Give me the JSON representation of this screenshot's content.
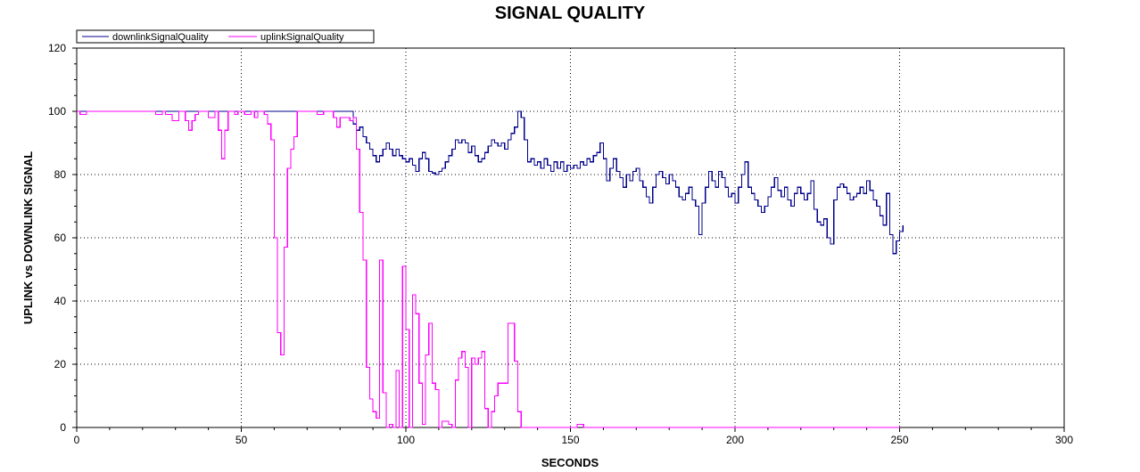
{
  "chart_data": {
    "type": "line",
    "title": "SIGNAL QUALITY",
    "xlabel": "SECONDS",
    "ylabel": "UPLINK vs DOWNLINK SIGNAL",
    "xlim": [
      0,
      300
    ],
    "ylim": [
      0,
      120
    ],
    "xticks": [
      0,
      50,
      100,
      150,
      200,
      250,
      300
    ],
    "yticks": [
      0,
      20,
      40,
      60,
      80,
      100,
      120
    ],
    "grid": true,
    "legend_position": "top-left",
    "step": true,
    "series": [
      {
        "name": "downlinkSignalQuality",
        "color": "#00008b",
        "points": [
          [
            0,
            100
          ],
          [
            83,
            100
          ],
          [
            84,
            96
          ],
          [
            85,
            94
          ],
          [
            86,
            95
          ],
          [
            87,
            92
          ],
          [
            88,
            90
          ],
          [
            89,
            88
          ],
          [
            90,
            86
          ],
          [
            91,
            84
          ],
          [
            92,
            86
          ],
          [
            93,
            88
          ],
          [
            94,
            90
          ],
          [
            95,
            88
          ],
          [
            96,
            86
          ],
          [
            97,
            88
          ],
          [
            98,
            86
          ],
          [
            99,
            85
          ],
          [
            100,
            84
          ],
          [
            101,
            85
          ],
          [
            102,
            83
          ],
          [
            103,
            81
          ],
          [
            104,
            85
          ],
          [
            105,
            87
          ],
          [
            106,
            85
          ],
          [
            107,
            81
          ],
          [
            108,
            80.5
          ],
          [
            109,
            80
          ],
          [
            110,
            81
          ],
          [
            111,
            82
          ],
          [
            112,
            84
          ],
          [
            113,
            86
          ],
          [
            114,
            88
          ],
          [
            115,
            91
          ],
          [
            116,
            90
          ],
          [
            117,
            91
          ],
          [
            118,
            90
          ],
          [
            119,
            87
          ],
          [
            120,
            89
          ],
          [
            121,
            86
          ],
          [
            122,
            84
          ],
          [
            123,
            85
          ],
          [
            124,
            87
          ],
          [
            125,
            89
          ],
          [
            126,
            91
          ],
          [
            127,
            90
          ],
          [
            128,
            89
          ],
          [
            129,
            90
          ],
          [
            130,
            88
          ],
          [
            131,
            91
          ],
          [
            132,
            93
          ],
          [
            133,
            95
          ],
          [
            134,
            100
          ],
          [
            135,
            98
          ],
          [
            136,
            91
          ],
          [
            137,
            84
          ],
          [
            138,
            85
          ],
          [
            139,
            83
          ],
          [
            140,
            84
          ],
          [
            141,
            82
          ],
          [
            142,
            85
          ],
          [
            143,
            83
          ],
          [
            144,
            81
          ],
          [
            145,
            84
          ],
          [
            146,
            82
          ],
          [
            147,
            84
          ],
          [
            148,
            81
          ],
          [
            149,
            83
          ],
          [
            150,
            82
          ],
          [
            151,
            83
          ],
          [
            152,
            82
          ],
          [
            153,
            84
          ],
          [
            154,
            83
          ],
          [
            155,
            85
          ],
          [
            156,
            84
          ],
          [
            157,
            86
          ],
          [
            158,
            87
          ],
          [
            159,
            90
          ],
          [
            160,
            85
          ],
          [
            161,
            78
          ],
          [
            162,
            82
          ],
          [
            163,
            85
          ],
          [
            164,
            81
          ],
          [
            165,
            79
          ],
          [
            166,
            76
          ],
          [
            167,
            80
          ],
          [
            168,
            78
          ],
          [
            169,
            81
          ],
          [
            170,
            82
          ],
          [
            171,
            78
          ],
          [
            172,
            76
          ],
          [
            173,
            73
          ],
          [
            174,
            71
          ],
          [
            175,
            76
          ],
          [
            176,
            80
          ],
          [
            177,
            81
          ],
          [
            178,
            79
          ],
          [
            179,
            77
          ],
          [
            180,
            80
          ],
          [
            181,
            78
          ],
          [
            182,
            76
          ],
          [
            183,
            73
          ],
          [
            184,
            72
          ],
          [
            185,
            74
          ],
          [
            186,
            76
          ],
          [
            187,
            72
          ],
          [
            188,
            70
          ],
          [
            189,
            61
          ],
          [
            190,
            71
          ],
          [
            191,
            76
          ],
          [
            192,
            81
          ],
          [
            193,
            78
          ],
          [
            194,
            76
          ],
          [
            195,
            81
          ],
          [
            196,
            79
          ],
          [
            197,
            76
          ],
          [
            198,
            73
          ],
          [
            199,
            74
          ],
          [
            200,
            71
          ],
          [
            201,
            76
          ],
          [
            202,
            80
          ],
          [
            203,
            84
          ],
          [
            204,
            76
          ],
          [
            205,
            74
          ],
          [
            206,
            72
          ],
          [
            207,
            70
          ],
          [
            208,
            68
          ],
          [
            209,
            70
          ],
          [
            210,
            73
          ],
          [
            211,
            76
          ],
          [
            212,
            79
          ],
          [
            213,
            75
          ],
          [
            214,
            73
          ],
          [
            215,
            76
          ],
          [
            216,
            72
          ],
          [
            217,
            70
          ],
          [
            218,
            74
          ],
          [
            219,
            76
          ],
          [
            220,
            74
          ],
          [
            221,
            72
          ],
          [
            222,
            74
          ],
          [
            223,
            78
          ],
          [
            224,
            69
          ],
          [
            225,
            65
          ],
          [
            226,
            64
          ],
          [
            227,
            66
          ],
          [
            228,
            60
          ],
          [
            229,
            58
          ],
          [
            230,
            72
          ],
          [
            231,
            76
          ],
          [
            232,
            77
          ],
          [
            233,
            76
          ],
          [
            234,
            74
          ],
          [
            235,
            72
          ],
          [
            236,
            73
          ],
          [
            237,
            74
          ],
          [
            238,
            76
          ],
          [
            239,
            74
          ],
          [
            240,
            78
          ],
          [
            241,
            75
          ],
          [
            242,
            72
          ],
          [
            243,
            70
          ],
          [
            244,
            67
          ],
          [
            245,
            64
          ],
          [
            246,
            74
          ],
          [
            247,
            61
          ],
          [
            248,
            55
          ],
          [
            249,
            59
          ],
          [
            250,
            62
          ],
          [
            251,
            64
          ]
        ]
      },
      {
        "name": "uplinkSignalQuality",
        "color": "#ff00ff",
        "points": [
          [
            0,
            100
          ],
          [
            1,
            99
          ],
          [
            3,
            100
          ],
          [
            24,
            99
          ],
          [
            26,
            100
          ],
          [
            27,
            99
          ],
          [
            29,
            97
          ],
          [
            31,
            100
          ],
          [
            33,
            97
          ],
          [
            34,
            94
          ],
          [
            35,
            97
          ],
          [
            36,
            99
          ],
          [
            37,
            100
          ],
          [
            40,
            98
          ],
          [
            42,
            100
          ],
          [
            43,
            94
          ],
          [
            44,
            85
          ],
          [
            45,
            94
          ],
          [
            46,
            100
          ],
          [
            48,
            99
          ],
          [
            49,
            100
          ],
          [
            51,
            99
          ],
          [
            53,
            100
          ],
          [
            54,
            98
          ],
          [
            55,
            100
          ],
          [
            57,
            99
          ],
          [
            58,
            96
          ],
          [
            59,
            91
          ],
          [
            60,
            60
          ],
          [
            61,
            30
          ],
          [
            62,
            23
          ],
          [
            63,
            57
          ],
          [
            64,
            82
          ],
          [
            65,
            88
          ],
          [
            66,
            92
          ],
          [
            67,
            100
          ],
          [
            73,
            99
          ],
          [
            75,
            100
          ],
          [
            78,
            98
          ],
          [
            79,
            95
          ],
          [
            80,
            98
          ],
          [
            83,
            97
          ],
          [
            84,
            98
          ],
          [
            85,
            88
          ],
          [
            86,
            68
          ],
          [
            87,
            53
          ],
          [
            88,
            19
          ],
          [
            89,
            9
          ],
          [
            90,
            5
          ],
          [
            91,
            3
          ],
          [
            92,
            53
          ],
          [
            93,
            11
          ],
          [
            94,
            0
          ],
          [
            95,
            1
          ],
          [
            96,
            0
          ],
          [
            97,
            18
          ],
          [
            98,
            0
          ],
          [
            99,
            51
          ],
          [
            100,
            31
          ],
          [
            101,
            0
          ],
          [
            102,
            42
          ],
          [
            103,
            36
          ],
          [
            104,
            14
          ],
          [
            105,
            1
          ],
          [
            106,
            23
          ],
          [
            107,
            33
          ],
          [
            108,
            14
          ],
          [
            109,
            12
          ],
          [
            110,
            0
          ],
          [
            111,
            2
          ],
          [
            113,
            1
          ],
          [
            114,
            0
          ],
          [
            115,
            15
          ],
          [
            116,
            22
          ],
          [
            117,
            24
          ],
          [
            118,
            19
          ],
          [
            119,
            0
          ],
          [
            120,
            22
          ],
          [
            121,
            20
          ],
          [
            122,
            22
          ],
          [
            123,
            24
          ],
          [
            124,
            6
          ],
          [
            125,
            0
          ],
          [
            126,
            5
          ],
          [
            127,
            10
          ],
          [
            128,
            14
          ],
          [
            131,
            33
          ],
          [
            133,
            21
          ],
          [
            134,
            5
          ],
          [
            135,
            0
          ],
          [
            152,
            1
          ],
          [
            154,
            0
          ],
          [
            250,
            0
          ]
        ]
      }
    ]
  }
}
